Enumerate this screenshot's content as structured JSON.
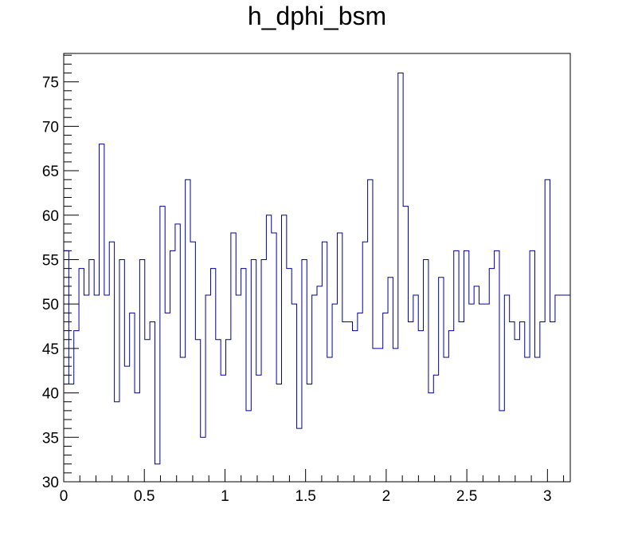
{
  "chart_data": {
    "type": "histogram",
    "title": "h_dphi_bsm",
    "xlabel": "",
    "ylabel": "",
    "xlim": [
      0,
      3.14159
    ],
    "ylim": [
      30,
      78.2
    ],
    "x_ticks": [
      "0",
      "0.5",
      "1",
      "1.5",
      "2",
      "2.5",
      "3"
    ],
    "y_ticks": [
      "30",
      "35",
      "40",
      "45",
      "50",
      "55",
      "60",
      "65",
      "70",
      "75"
    ],
    "bin_width": 0.0314159,
    "line_color": "#000099",
    "values": [
      56,
      41,
      47,
      54,
      51,
      55,
      51,
      68,
      51,
      57,
      39,
      55,
      43,
      49,
      40,
      55,
      46,
      48,
      32,
      61,
      49,
      56,
      59,
      44,
      64,
      57,
      46,
      35,
      51,
      54,
      46,
      42,
      46,
      58,
      51,
      54,
      38,
      55,
      42,
      55,
      60,
      58,
      41,
      60,
      54,
      50,
      36,
      55,
      41,
      51,
      52,
      57,
      44,
      50,
      58,
      48,
      48,
      47,
      49,
      57,
      64,
      45,
      45,
      49,
      53,
      45,
      76,
      61,
      48,
      51,
      47,
      55,
      40,
      42,
      53,
      44,
      47,
      56,
      48,
      56,
      50,
      52,
      50,
      50,
      54,
      56,
      38,
      51,
      48,
      46,
      48,
      44,
      56,
      44,
      48,
      64,
      48,
      51,
      51,
      51
    ]
  }
}
